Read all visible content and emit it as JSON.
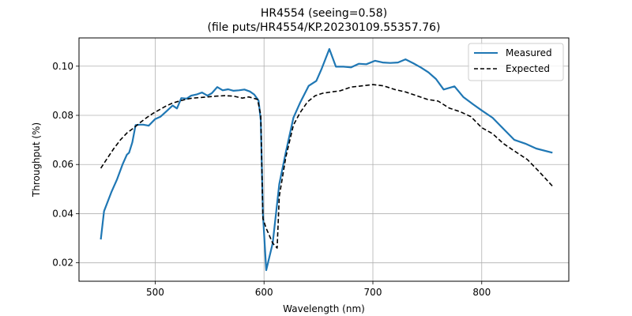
{
  "chart_data": {
    "type": "line",
    "title_line1": "HR4554 (seeing=0.58)",
    "title_line2": "(file puts/HR4554/KP.20230109.55357.76)",
    "xlabel": "Wavelength (nm)",
    "ylabel": "Throughput (%)",
    "xlim": [
      430,
      880
    ],
    "ylim": [
      0.0125,
      0.1115
    ],
    "xticks": [
      500,
      600,
      700,
      800
    ],
    "yticks": [
      0.02,
      0.04,
      0.06,
      0.08,
      0.1
    ],
    "xtick_labels": [
      "500",
      "600",
      "700",
      "800"
    ],
    "ytick_labels": [
      "0.02",
      "0.04",
      "0.06",
      "0.08",
      "0.10"
    ],
    "grid": true,
    "legend_position": "top-right",
    "series": [
      {
        "name": "Measured",
        "color": "#1f77b4",
        "style": "solid",
        "points": [
          [
            450,
            0.0295
          ],
          [
            453,
            0.041
          ],
          [
            460,
            0.049
          ],
          [
            465,
            0.054
          ],
          [
            470,
            0.06
          ],
          [
            474,
            0.064
          ],
          [
            476,
            0.0648
          ],
          [
            479,
            0.069
          ],
          [
            482,
            0.076
          ],
          [
            486,
            0.0762
          ],
          [
            489,
            0.0762
          ],
          [
            494,
            0.0758
          ],
          [
            500,
            0.0785
          ],
          [
            505,
            0.0795
          ],
          [
            510,
            0.0815
          ],
          [
            516,
            0.084
          ],
          [
            520,
            0.0828
          ],
          [
            524,
            0.087
          ],
          [
            529,
            0.0868
          ],
          [
            533,
            0.088
          ],
          [
            538,
            0.0885
          ],
          [
            543,
            0.0893
          ],
          [
            548,
            0.088
          ],
          [
            552,
            0.089
          ],
          [
            557,
            0.0915
          ],
          [
            562,
            0.0902
          ],
          [
            567,
            0.0906
          ],
          [
            572,
            0.09
          ],
          [
            577,
            0.0902
          ],
          [
            582,
            0.0905
          ],
          [
            587,
            0.0897
          ],
          [
            591,
            0.0885
          ],
          [
            595,
            0.086
          ],
          [
            597,
            0.078
          ],
          [
            599,
            0.04
          ],
          [
            602,
            0.017
          ],
          [
            608,
            0.028
          ],
          [
            614,
            0.052
          ],
          [
            620,
            0.065
          ],
          [
            627,
            0.079
          ],
          [
            633,
            0.085
          ],
          [
            641,
            0.092
          ],
          [
            648,
            0.094
          ],
          [
            653,
            0.099
          ],
          [
            660,
            0.107
          ],
          [
            666,
            0.0998
          ],
          [
            673,
            0.0998
          ],
          [
            680,
            0.0995
          ],
          [
            687,
            0.101
          ],
          [
            694,
            0.1008
          ],
          [
            702,
            0.1022
          ],
          [
            709,
            0.1015
          ],
          [
            716,
            0.1013
          ],
          [
            723,
            0.1015
          ],
          [
            730,
            0.1028
          ],
          [
            737,
            0.1012
          ],
          [
            744,
            0.0995
          ],
          [
            751,
            0.0975
          ],
          [
            758,
            0.0948
          ],
          [
            765,
            0.0905
          ],
          [
            775,
            0.0918
          ],
          [
            783,
            0.0875
          ],
          [
            792,
            0.0845
          ],
          [
            800,
            0.082
          ],
          [
            810,
            0.079
          ],
          [
            820,
            0.0745
          ],
          [
            830,
            0.07
          ],
          [
            840,
            0.0685
          ],
          [
            850,
            0.0665
          ],
          [
            865,
            0.0648
          ]
        ]
      },
      {
        "name": "Expected",
        "color": "#000000",
        "style": "dashed",
        "points": [
          [
            450,
            0.0585
          ],
          [
            456,
            0.0625
          ],
          [
            462,
            0.0665
          ],
          [
            468,
            0.07
          ],
          [
            474,
            0.0728
          ],
          [
            480,
            0.0748
          ],
          [
            486,
            0.077
          ],
          [
            492,
            0.079
          ],
          [
            498,
            0.0808
          ],
          [
            504,
            0.0823
          ],
          [
            510,
            0.0838
          ],
          [
            516,
            0.085
          ],
          [
            522,
            0.0858
          ],
          [
            528,
            0.0865
          ],
          [
            534,
            0.087
          ],
          [
            540,
            0.0872
          ],
          [
            548,
            0.0875
          ],
          [
            556,
            0.0878
          ],
          [
            564,
            0.088
          ],
          [
            572,
            0.0878
          ],
          [
            580,
            0.087
          ],
          [
            586,
            0.0875
          ],
          [
            590,
            0.087
          ],
          [
            594,
            0.0865
          ],
          [
            597,
            0.08
          ],
          [
            599,
            0.038
          ],
          [
            602,
            0.034
          ],
          [
            608,
            0.028
          ],
          [
            612,
            0.026
          ],
          [
            614,
            0.047
          ],
          [
            620,
            0.063
          ],
          [
            627,
            0.076
          ],
          [
            633,
            0.081
          ],
          [
            640,
            0.0855
          ],
          [
            647,
            0.088
          ],
          [
            654,
            0.089
          ],
          [
            662,
            0.0895
          ],
          [
            670,
            0.09
          ],
          [
            680,
            0.0915
          ],
          [
            690,
            0.092
          ],
          [
            700,
            0.0925
          ],
          [
            710,
            0.092
          ],
          [
            720,
            0.0905
          ],
          [
            730,
            0.0895
          ],
          [
            740,
            0.088
          ],
          [
            750,
            0.0865
          ],
          [
            760,
            0.0858
          ],
          [
            770,
            0.083
          ],
          [
            780,
            0.0815
          ],
          [
            790,
            0.0795
          ],
          [
            800,
            0.075
          ],
          [
            810,
            0.0725
          ],
          [
            820,
            0.0685
          ],
          [
            830,
            0.0655
          ],
          [
            842,
            0.062
          ],
          [
            853,
            0.057
          ],
          [
            865,
            0.0512
          ]
        ]
      }
    ]
  }
}
